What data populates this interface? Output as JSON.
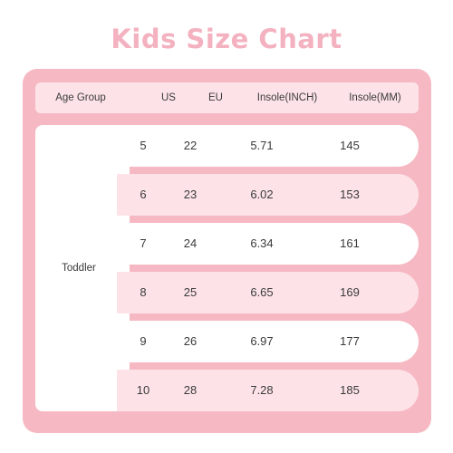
{
  "title": "Kids Size Chart",
  "header": {
    "age_group": "Age Group",
    "us": "US",
    "eu": "EU",
    "insole_inch": "Insole(INCH)",
    "insole_mm": "Insole(MM)"
  },
  "age_group_value": "Toddler",
  "rows": [
    {
      "us": "5",
      "eu": "22",
      "inch": "5.71",
      "mm": "145"
    },
    {
      "us": "6",
      "eu": "23",
      "inch": "6.02",
      "mm": "153"
    },
    {
      "us": "7",
      "eu": "24",
      "inch": "6.34",
      "mm": "161"
    },
    {
      "us": "8",
      "eu": "25",
      "inch": "6.65",
      "mm": "169"
    },
    {
      "us": "9",
      "eu": "26",
      "inch": "6.97",
      "mm": "177"
    },
    {
      "us": "10",
      "eu": "28",
      "inch": "7.28",
      "mm": "185"
    }
  ],
  "colors": {
    "title": "#f4b1bf",
    "card": "#f6b9c3",
    "light_row": "#fde3e8",
    "white_row": "#ffffff",
    "text": "#3a3a3a"
  }
}
